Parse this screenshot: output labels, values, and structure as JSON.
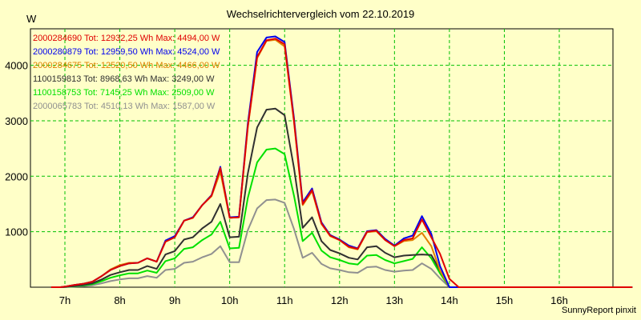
{
  "chart_data": {
    "type": "line",
    "title": "Wechselrichtervergleich vom 22.10.2019",
    "ylabel": "W",
    "xlabel": "",
    "footer": "SunnyReport pinxit",
    "xlim": [
      6.5,
      17.5
    ],
    "ylim": [
      0,
      4600
    ],
    "grid": true,
    "yticks": [
      1000,
      2000,
      3000,
      4000
    ],
    "yticklabels": [
      "1000",
      "2000",
      "3000",
      "4000"
    ],
    "xticks": [
      7,
      8,
      9,
      10,
      11,
      12,
      13,
      14,
      15,
      16
    ],
    "xticklabels": [
      "7h",
      "8h",
      "9h",
      "10h",
      "11h",
      "12h",
      "13h",
      "14h",
      "15h",
      "16h"
    ],
    "x": [
      6.75,
      6.92,
      7.0,
      7.17,
      7.33,
      7.5,
      7.67,
      7.83,
      8.0,
      8.17,
      8.33,
      8.5,
      8.67,
      8.83,
      9.0,
      9.17,
      9.33,
      9.5,
      9.67,
      9.83,
      10.0,
      10.17,
      10.33,
      10.5,
      10.67,
      10.83,
      11.0,
      11.17,
      11.33,
      11.5,
      11.67,
      11.83,
      12.0,
      12.17,
      12.33,
      12.5,
      12.67,
      12.83,
      13.0,
      13.17,
      13.33,
      13.5,
      13.67,
      13.83,
      14.0,
      14.17,
      14.33,
      14.5,
      14.67,
      14.83,
      15.0,
      15.17,
      15.33,
      15.5,
      15.67,
      15.83,
      16.0,
      16.17,
      16.33,
      16.5,
      16.67,
      16.83,
      17.0,
      17.17,
      17.33
    ],
    "series": [
      {
        "name": "2000284690",
        "legend": "2000284690 Tot: 12932,25 Wh Max: 4494,00 W",
        "color": "#e00000",
        "values": [
          0,
          0,
          10,
          40,
          60,
          100,
          200,
          310,
          380,
          430,
          440,
          520,
          460,
          820,
          900,
          1200,
          1250,
          1480,
          1650,
          2150,
          1250,
          1260,
          2900,
          4150,
          4450,
          4480,
          4380,
          3000,
          1500,
          1750,
          1150,
          930,
          850,
          730,
          690,
          1000,
          1020,
          850,
          740,
          850,
          880,
          1220,
          900,
          600,
          150,
          0,
          0,
          0,
          0,
          0,
          0,
          0,
          0,
          0,
          0,
          0,
          0,
          0,
          0,
          0,
          0,
          0,
          0,
          0,
          0
        ]
      },
      {
        "name": "2000280879",
        "legend": "2000280879 Tot: 12959,50 Wh Max: 4524,00 W",
        "color": "#0000ee",
        "values": [
          0,
          0,
          10,
          40,
          60,
          100,
          200,
          310,
          380,
          430,
          440,
          520,
          460,
          840,
          920,
          1200,
          1260,
          1480,
          1660,
          2170,
          1260,
          1270,
          2950,
          4240,
          4500,
          4520,
          4420,
          3050,
          1530,
          1780,
          1170,
          940,
          860,
          750,
          700,
          1010,
          1030,
          870,
          750,
          880,
          930,
          1280,
          960,
          380,
          0,
          0,
          0,
          0,
          0,
          0,
          0,
          0,
          0,
          0,
          0,
          0,
          0,
          0,
          0,
          0,
          0,
          0,
          0,
          0,
          0
        ]
      },
      {
        "name": "2000284675",
        "legend": "2000284675 Tot: 12520,50 Wh Max: 4466,00 W",
        "color": "#e08000",
        "values": [
          0,
          0,
          10,
          40,
          60,
          100,
          200,
          320,
          400,
          440,
          440,
          520,
          460,
          820,
          900,
          1200,
          1250,
          1480,
          1640,
          2080,
          1250,
          1260,
          2880,
          4130,
          4440,
          4460,
          4340,
          2980,
          1480,
          1730,
          1140,
          920,
          850,
          720,
          680,
          990,
          1010,
          850,
          740,
          830,
          850,
          980,
          740,
          300,
          0,
          0,
          0,
          0,
          0,
          0,
          0,
          0,
          0,
          0,
          0,
          0,
          0,
          0,
          0,
          0,
          0,
          0,
          0,
          0,
          0
        ]
      },
      {
        "name": "1100159813",
        "legend": "1100159813 Tot: 8968,63 Wh Max: 3249,00 W",
        "color": "#303030",
        "values": [
          0,
          0,
          5,
          20,
          40,
          70,
          140,
          220,
          270,
          310,
          310,
          380,
          330,
          590,
          650,
          860,
          900,
          1060,
          1180,
          1500,
          900,
          910,
          2050,
          2880,
          3200,
          3220,
          3100,
          2150,
          1070,
          1260,
          830,
          670,
          610,
          530,
          500,
          720,
          740,
          620,
          540,
          570,
          580,
          590,
          580,
          300,
          0,
          0,
          0,
          0,
          0,
          0,
          0,
          0,
          0,
          0,
          0,
          0,
          0,
          0,
          0,
          0,
          0,
          0,
          0,
          0,
          0
        ]
      },
      {
        "name": "1100158753",
        "legend": "1100158753 Tot: 7145,25 Wh Max: 2509,00 W",
        "color": "#00e000",
        "values": [
          0,
          0,
          5,
          15,
          30,
          55,
          110,
          170,
          215,
          250,
          250,
          300,
          260,
          470,
          520,
          690,
          720,
          850,
          950,
          1180,
          700,
          710,
          1610,
          2250,
          2480,
          2500,
          2400,
          1650,
          830,
          980,
          660,
          540,
          490,
          430,
          410,
          570,
          580,
          490,
          430,
          470,
          510,
          720,
          520,
          250,
          0,
          0,
          0,
          0,
          0,
          0,
          0,
          0,
          0,
          0,
          0,
          0,
          0,
          0,
          0,
          0,
          0,
          0,
          0,
          0,
          0
        ]
      },
      {
        "name": "2000065783",
        "legend": "2000065783 Tot: 4510,13 Wh Max: 1587,00 W",
        "color": "#909090",
        "values": [
          0,
          0,
          3,
          10,
          20,
          35,
          70,
          110,
          140,
          160,
          160,
          200,
          170,
          310,
          330,
          440,
          460,
          540,
          600,
          740,
          450,
          450,
          1030,
          1420,
          1570,
          1580,
          1520,
          1050,
          530,
          620,
          420,
          340,
          310,
          270,
          260,
          360,
          370,
          310,
          280,
          300,
          310,
          430,
          330,
          160,
          0,
          0,
          0,
          0,
          0,
          0,
          0,
          0,
          0,
          0,
          0,
          0,
          0,
          0,
          0,
          0,
          0,
          0,
          0,
          0,
          0
        ]
      }
    ]
  }
}
